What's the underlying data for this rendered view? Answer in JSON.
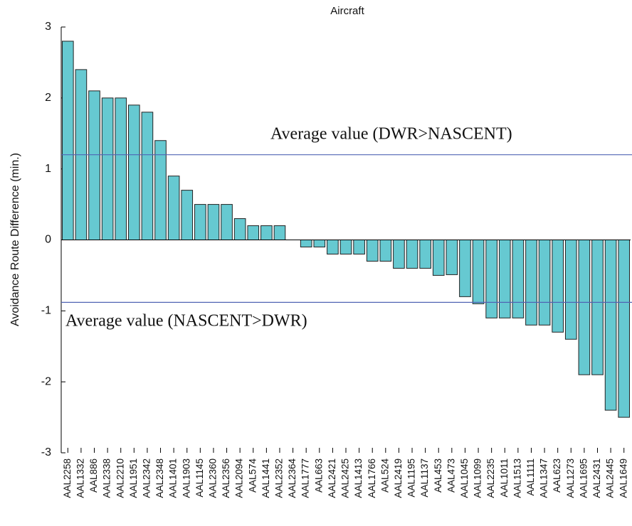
{
  "chart_data": {
    "type": "bar",
    "title": "Aircraft",
    "y_label": "Avoidance Route Difference (min.)",
    "categories": [
      "AAL2258",
      "AAL1332",
      "AAL886",
      "AAL2338",
      "AAL2210",
      "AAL1951",
      "AAL2342",
      "AAL2348",
      "AAL1401",
      "AAL1903",
      "AAL1145",
      "AAL2360",
      "AAL2356",
      "AAL2094",
      "AAL574",
      "AAL1441",
      "AAL2352",
      "AAL2364",
      "AAL1777",
      "AAL663",
      "AAL2421",
      "AAL2425",
      "AAL1413",
      "AAL1766",
      "AAL524",
      "AAL2419",
      "AAL1195",
      "AAL1137",
      "AAL453",
      "AAL473",
      "AAL1045",
      "AAL1099",
      "AAL2235",
      "AAL1011",
      "AAL1513",
      "AAL1111",
      "AAL1347",
      "AAL623",
      "AAL1273",
      "AAL1695",
      "AAL2431",
      "AAL2445",
      "AAL1649"
    ],
    "values": [
      2.8,
      2.4,
      2.1,
      2.0,
      2.0,
      1.9,
      1.8,
      1.4,
      0.9,
      0.7,
      0.5,
      0.5,
      0.5,
      0.3,
      0.2,
      0.2,
      0.2,
      0,
      -0.1,
      -0.1,
      -0.2,
      -0.2,
      -0.2,
      -0.3,
      -0.3,
      -0.4,
      -0.4,
      -0.4,
      -0.5,
      -0.49,
      -0.8,
      -0.9,
      -1.1,
      -1.1,
      -1.1,
      -1.2,
      -1.2,
      -1.3,
      -1.4,
      -1.9,
      -1.9,
      -2.4,
      -2.5
    ],
    "color": "#66c9d1",
    "ylim": [
      -3,
      3
    ],
    "yticks": [
      -3,
      -2,
      -1,
      0,
      1,
      2,
      3
    ],
    "reference_lines": [
      {
        "label": "Average value (DWR>NASCENT)",
        "value": 1.2,
        "color": "#5064b4"
      },
      {
        "label": "Average value (NASCENT>DWR)",
        "value": -0.88,
        "color": "#5064b4"
      }
    ]
  }
}
